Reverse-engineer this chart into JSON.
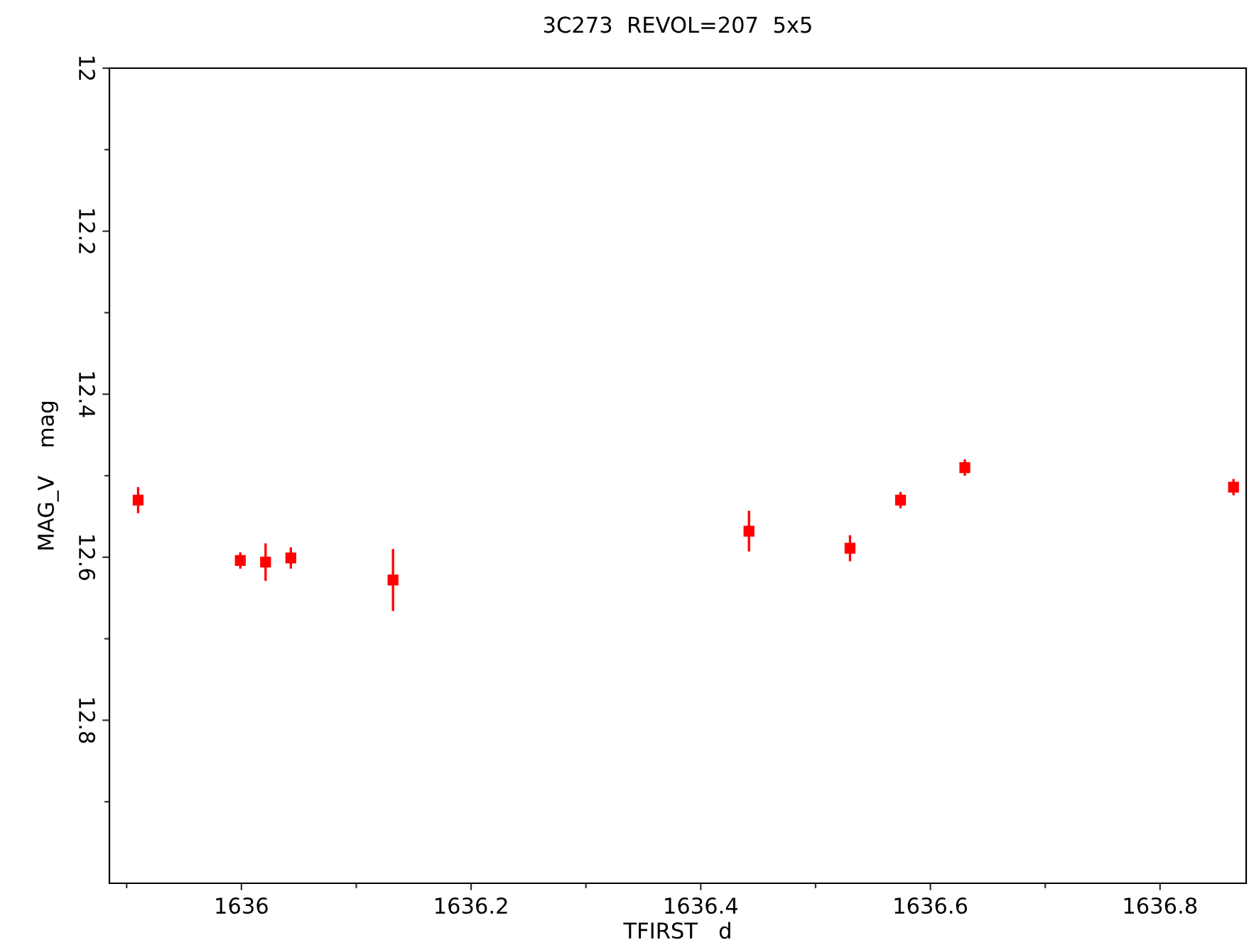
{
  "chart_data": {
    "type": "scatter",
    "title": "3C273  REVOL=207  5x5",
    "xlabel": "TFIRST   d",
    "ylabel": "MAG_V    mag",
    "x": [
      1635.91,
      1635.999,
      1636.021,
      1636.043,
      1636.132,
      1636.442,
      1636.53,
      1636.574,
      1636.63,
      1636.864
    ],
    "series": [
      {
        "color": "#ff0000",
        "values": [
          12.53,
          12.604,
          12.606,
          12.601,
          12.628,
          12.568,
          12.589,
          12.53,
          12.49,
          12.514
        ],
        "errors": [
          0.016,
          0.01,
          0.023,
          0.013,
          0.038,
          0.025,
          0.016,
          0.01,
          0.01,
          0.01
        ]
      }
    ],
    "marker": "square",
    "xlim": [
      1635.885,
      1636.875
    ],
    "ylim": [
      13.0,
      12.0
    ],
    "xticks": [
      {
        "value": 1635.9,
        "label": null
      },
      1636,
      {
        "value": 1636.1,
        "label": null
      },
      1636.2,
      {
        "value": 1636.3,
        "label": null
      },
      1636.4,
      {
        "value": 1636.5,
        "label": null
      },
      1636.6,
      {
        "value": 1636.7,
        "label": null
      },
      1636.8
    ],
    "yticks": [
      12,
      {
        "value": 12.1,
        "label": null
      },
      12.2,
      {
        "value": 12.3,
        "label": null
      },
      12.4,
      {
        "value": 12.5,
        "label": null
      },
      12.6,
      {
        "value": 12.7,
        "label": null
      },
      12.8,
      {
        "value": 12.9,
        "label": null
      }
    ],
    "grid": false
  }
}
